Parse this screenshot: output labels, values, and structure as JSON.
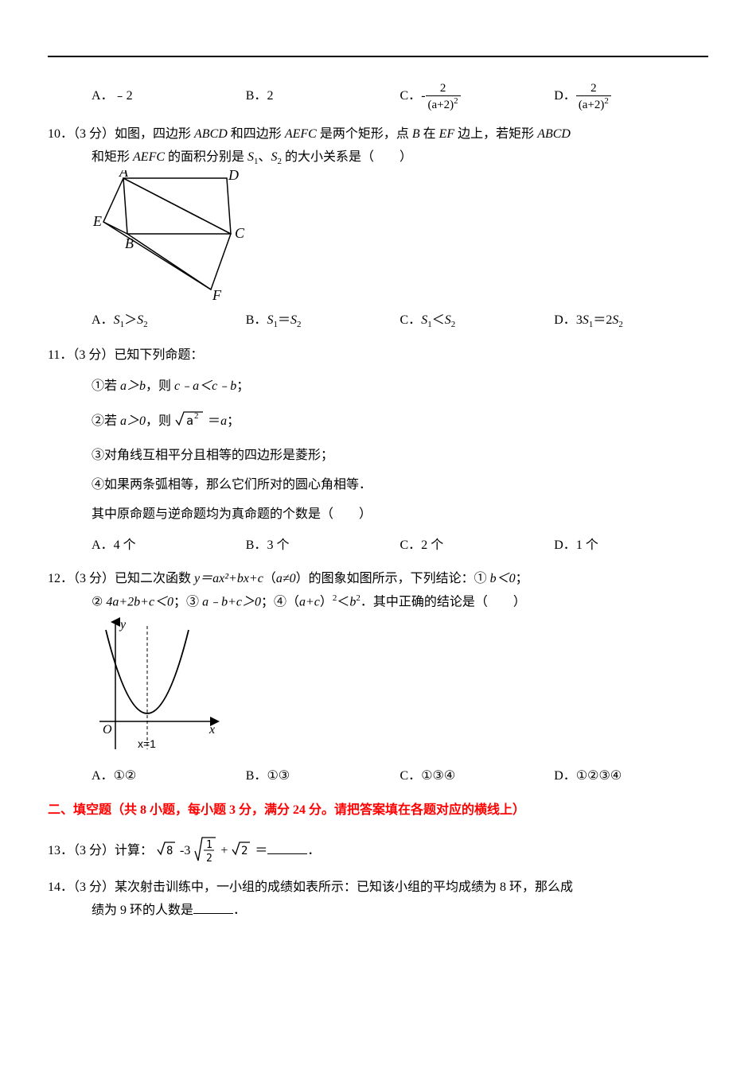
{
  "q9": {
    "optA_label": "A．",
    "optA_val": "﹣2",
    "optB_label": "B．",
    "optB_val": "2",
    "optC_label": "C．",
    "optC_num": "2",
    "optC_den": "(a+2)",
    "optC_exp": "2",
    "optD_label": "D．",
    "optD_num": "2",
    "optD_den": "(a+2)",
    "optD_exp": "2"
  },
  "q10": {
    "stem1": "10．（3 分）如图，四边形 ",
    "abcd": "ABCD",
    "stem2": " 和四边形 ",
    "aefc": "AEFC",
    "stem3": " 是两个矩形，点 ",
    "b": "B",
    "stem4": " 在 ",
    "ef": "EF",
    "stem5": " 边上，若矩形 ",
    "abcd2": "ABCD",
    "stem6": "和矩形 ",
    "aefc2": "AEFC",
    "stem7": " 的面积分别是 ",
    "s1": "S",
    "s1sub": "1",
    "dun": "、",
    "s2": "S",
    "s2sub": "2",
    "stem8": " 的大小关系是（　　）",
    "figure": {
      "labels": {
        "A": "A",
        "B": "B",
        "C": "C",
        "D": "D",
        "E": "E",
        "F": "F"
      },
      "points": {
        "A": [
          40,
          10
        ],
        "D": [
          170,
          10
        ],
        "E": [
          15,
          65
        ],
        "B": [
          45,
          80
        ],
        "C": [
          175,
          80
        ],
        "F": [
          150,
          150
        ]
      },
      "stroke": "#000000",
      "stroke_width": 1.5
    },
    "optA_label": "A．",
    "optA": "S₁＞S₂",
    "optB_label": "B．",
    "optB": "S₁＝S₂",
    "optC_label": "C．",
    "optC": "S₁＜S₂",
    "optD_label": "D．",
    "optD": "3S₁＝2S₂",
    "optA_html": "<span class='italic'>S</span><span class='sub'>1</span>＞<span class='italic'>S</span><span class='sub'>2</span>",
    "optB_html": "<span class='italic'>S</span><span class='sub'>1</span>＝<span class='italic'>S</span><span class='sub'>2</span>",
    "optC_html": "<span class='italic'>S</span><span class='sub'>1</span>＜<span class='italic'>S</span><span class='sub'>2</span>",
    "optD_html": "3<span class='italic'>S</span><span class='sub'>1</span>＝2<span class='italic'>S</span><span class='sub'>2</span>"
  },
  "q11": {
    "stem": "11．（3 分）已知下列命题：",
    "line1_a": "①若 ",
    "line1_b": "a＞b",
    "line1_c": "，则 ",
    "line1_d": "c﹣a＜c﹣b",
    "line1_e": "；",
    "line2_a": "②若 ",
    "line2_b": "a＞0",
    "line2_c": "，则",
    "line2_d": "＝",
    "line2_e": "a",
    "line2_f": "；",
    "sqrta2": "a",
    "sqrta2exp": "2",
    "line3": "③对角线互相平分且相等的四边形是菱形；",
    "line4": "④如果两条弧相等，那么它们所对的圆心角相等．",
    "line5": "其中原命题与逆命题均为真命题的个数是（　　）",
    "optA_label": "A．",
    "optA": "4 个",
    "optB_label": "B．",
    "optB": "3 个",
    "optC_label": "C．",
    "optC": "2 个",
    "optD_label": "D．",
    "optD": "1 个"
  },
  "q12": {
    "stem1": "12．（3 分）已知二次函数 ",
    "eq": "y＝ax²+bx+c",
    "eq_a": "（",
    "neq": "a≠0",
    "eq_b": "）的图象如图所示，下列结论：① ",
    "c1": "b＜0",
    "semi": "；",
    "line2_a": "② ",
    "c2": "4a+2b+c＜0",
    "line2_b": "；③ ",
    "c3": "a﹣b+c＞0",
    "line2_c": "；④（",
    "c4a": "a+c",
    "line2_d": "）",
    "c4exp": "2",
    "line2_e": "＜",
    "c4b": "b",
    "c4bexp": "2",
    "line2_f": "．其中正确的结论是（　　）",
    "figure": {
      "origin_label": "O",
      "y_label": "y",
      "x_label": "x",
      "vertex_label": "x=1",
      "stroke": "#000000"
    },
    "optA_label": "A．",
    "optA": "①②",
    "optB_label": "B．",
    "optB": "①③",
    "optC_label": "C．",
    "optC": "①③④",
    "optD_label": "D．",
    "optD": "①②③④"
  },
  "section2": {
    "title": "二、填空题（共 8 小题，每小题 3 分，满分 24 分。请把答案填在各题对应的横线上）",
    "color": "#ff0000"
  },
  "q13": {
    "stem1": "13．（3 分）计算：",
    "sqrt8": "8",
    "minus3": "-3",
    "frac_num": "1",
    "frac_den": "2",
    "plus": "+",
    "sqrt2": "2",
    "eq": "＝",
    "end": "．"
  },
  "q14": {
    "stem1": "14．（3 分）某次射击训练中，一小组的成绩如表所示：已知该小组的平均成绩为 8 环，那么成",
    "stem2": "绩为 9 环的人数是",
    "end": "．"
  }
}
